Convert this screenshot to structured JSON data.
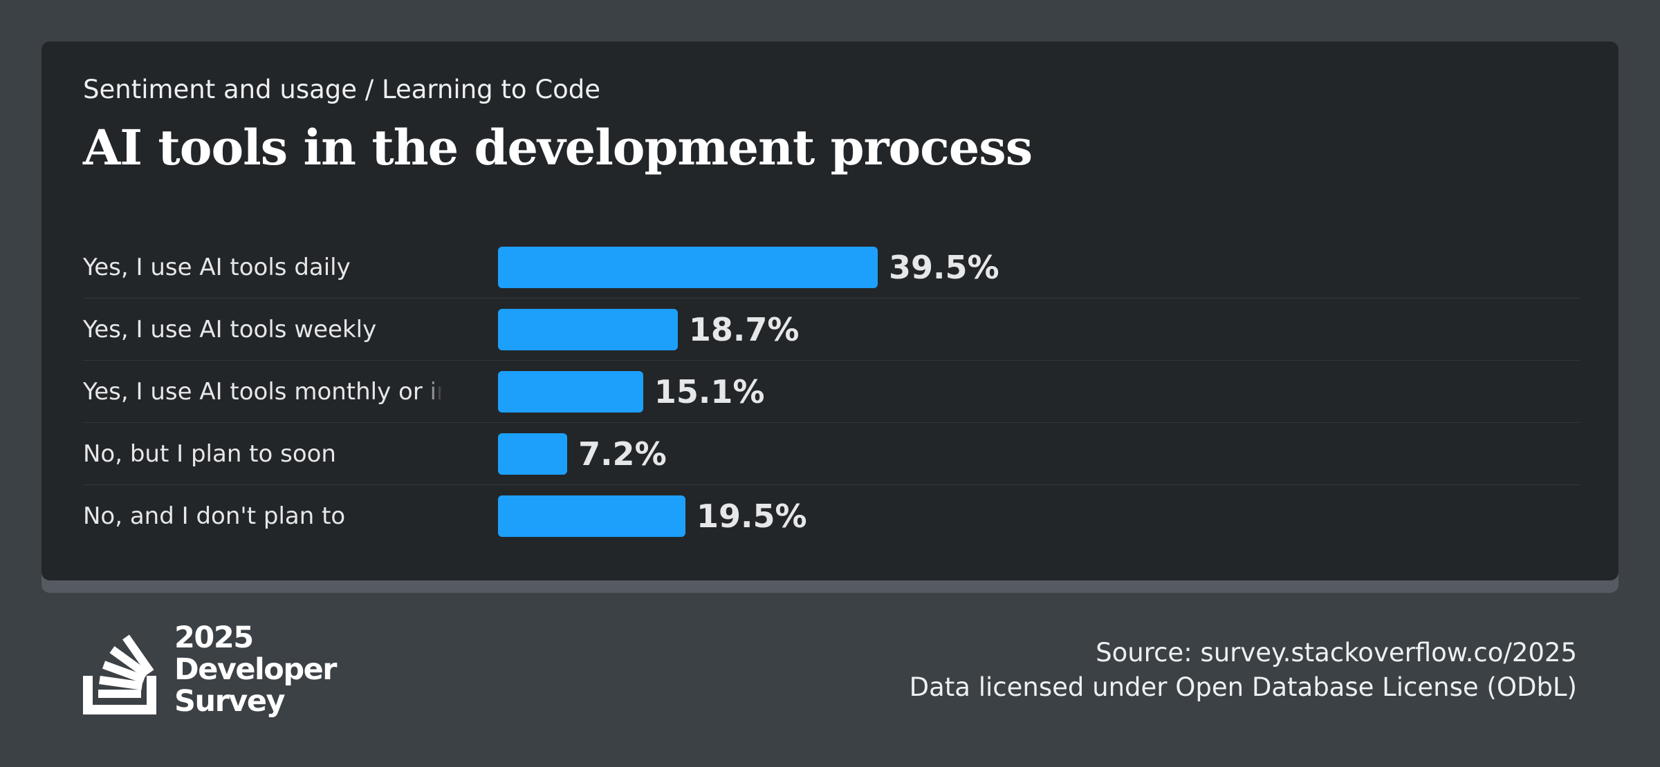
{
  "header": {
    "breadcrumb": "Sentiment and usage / Learning to Code",
    "title": "AI tools in the development process"
  },
  "chart_data": {
    "type": "bar",
    "orientation": "horizontal",
    "title": "AI tools in the development process",
    "categories": [
      "Yes, I use AI tools daily",
      "Yes, I use AI tools weekly",
      "Yes, I use AI tools monthly or infrequently",
      "No, but I plan to soon",
      "No, and I don't plan to"
    ],
    "values": [
      39.5,
      18.7,
      15.1,
      7.2,
      19.5
    ],
    "value_labels": [
      "39.5%",
      "18.7%",
      "15.1%",
      "7.2%",
      "19.5%"
    ],
    "unit": "%",
    "bar_color": "#1ca0fb",
    "grid": false,
    "legend": "none"
  },
  "footer": {
    "logo_lines": [
      "2025",
      "Developer",
      "Survey"
    ],
    "source": "Source: survey.stackoverflow.co/2025",
    "license": "Data licensed under Open Database License (ODbL)"
  }
}
